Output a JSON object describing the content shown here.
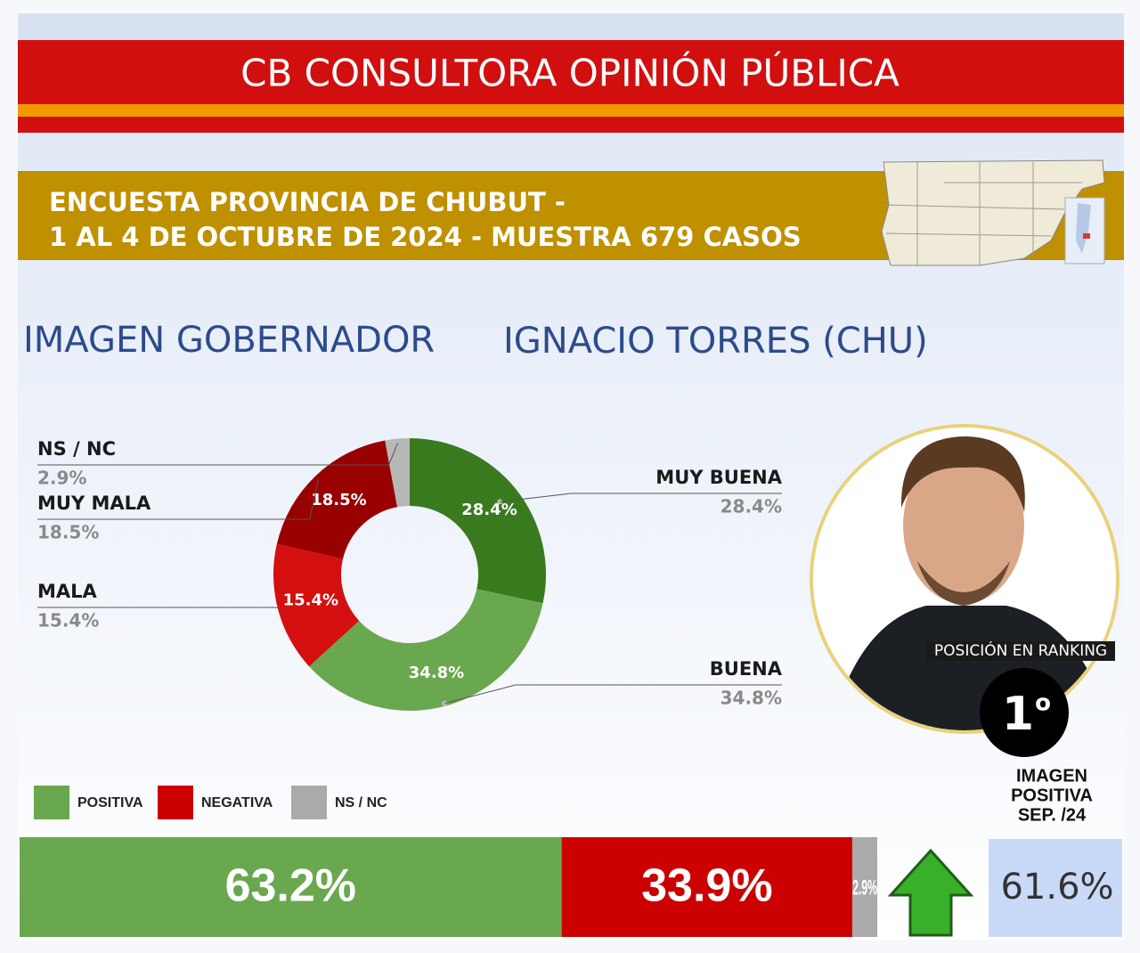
{
  "header": {
    "title": "CB CONSULTORA OPINIÓN PÚBLICA"
  },
  "survey": {
    "lines": [
      "ENCUESTA PROVINCIA DE CHUBUT -",
      "1 AL 4 DE OCTUBRE DE 2024 - MUESTRA 679 CASOS"
    ]
  },
  "section": {
    "title": "IMAGEN GOBERNADOR",
    "subtitle": "IGNACIO TORRES (CHU)"
  },
  "chart_data": [
    {
      "type": "donut",
      "categories": [
        "MUY BUENA",
        "BUENA",
        "MALA",
        "MUY MALA",
        "NS / NC"
      ],
      "values": [
        28.4,
        34.8,
        15.4,
        18.5,
        2.9
      ],
      "value_labels": [
        "28.4%",
        "34.8%",
        "15.4%",
        "18.5%",
        "2.9%"
      ],
      "colors": [
        "#3a7a1f",
        "#6aa84f",
        "#d40f0f",
        "#990000",
        "#b7b7b7"
      ]
    },
    {
      "type": "stacked_bar",
      "series": [
        {
          "name": "POSITIVA",
          "color": "#6aa84f",
          "values": [
            63.2
          ],
          "value_labels": [
            "63.2%"
          ]
        },
        {
          "name": "NEGATIVA",
          "color": "#cc0000",
          "values": [
            33.9
          ],
          "value_labels": [
            "33.9%"
          ]
        },
        {
          "name": "NS / NC",
          "color": "#aaaaaa",
          "values": [
            2.9
          ],
          "value_labels": [
            "2.9%"
          ]
        }
      ]
    }
  ],
  "ranking": {
    "label": "POSICIÓN EN RANKING",
    "position": "1",
    "ordinal": "o"
  },
  "previous": {
    "label_lines": [
      "IMAGEN",
      "POSITIVA",
      "SEP. /24"
    ],
    "value": "61.6%"
  }
}
